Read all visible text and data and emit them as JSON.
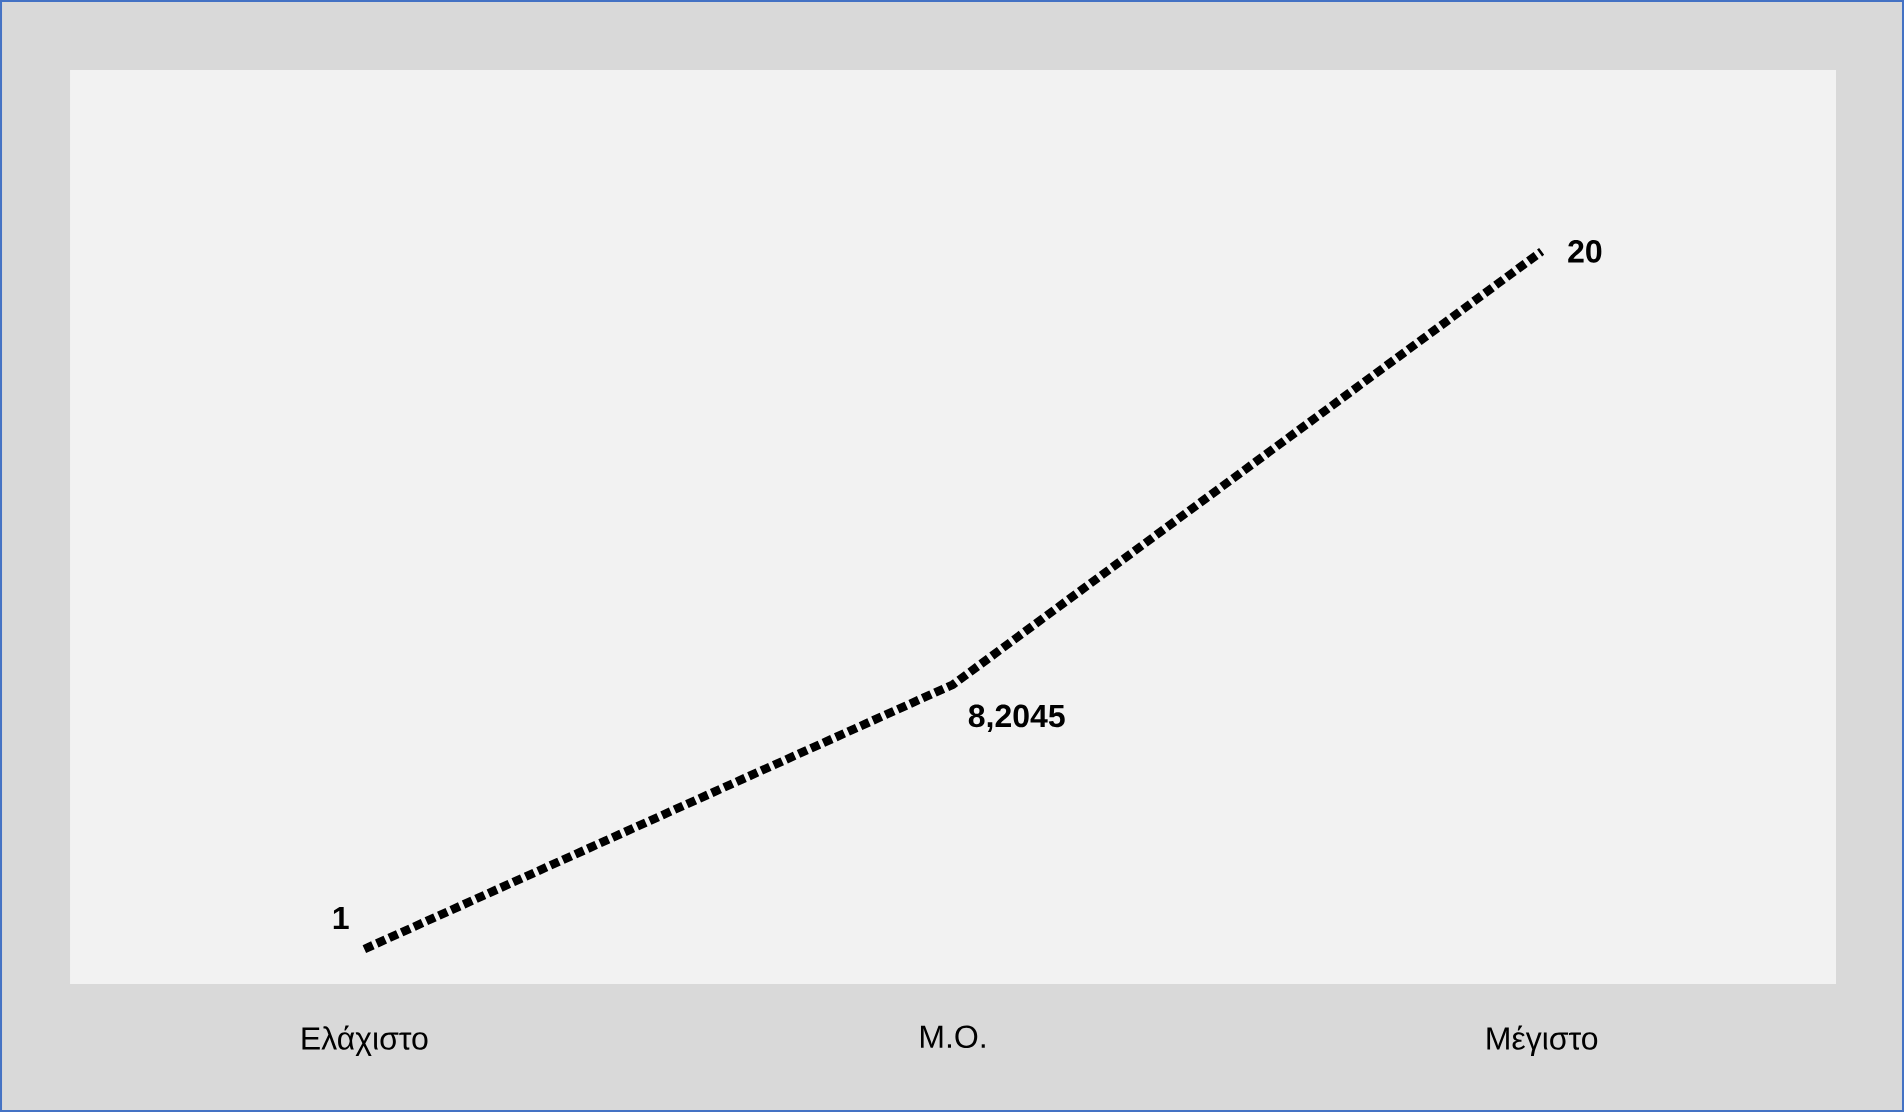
{
  "chart_data": {
    "type": "line",
    "categories": [
      "Ελάχιστο",
      "Μ.Ο.",
      "Μέγιστο"
    ],
    "series": [
      {
        "color": "#000000",
        "values": [
          1,
          8.2045,
          20
        ],
        "value_labels": [
          "1",
          "8,2045",
          "20"
        ]
      }
    ],
    "line_style": "dashed",
    "marker": "none",
    "grid": false,
    "tick_labels": "x"
  }
}
